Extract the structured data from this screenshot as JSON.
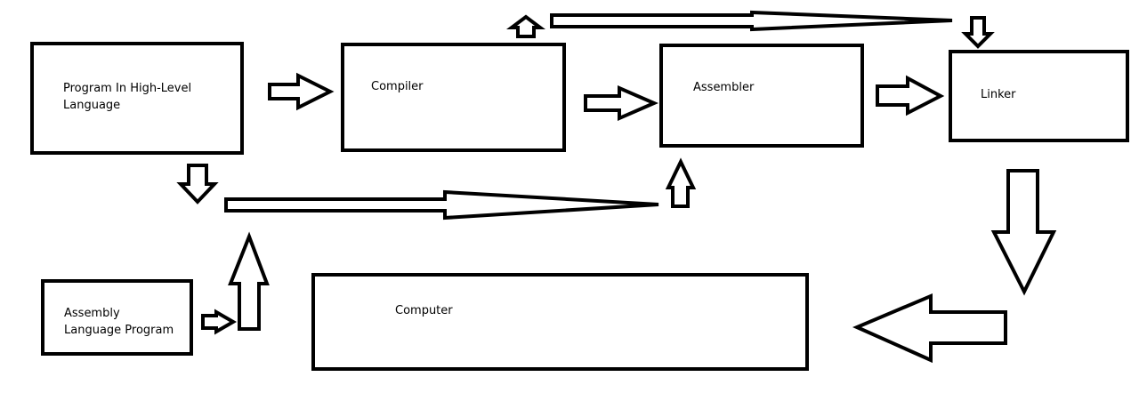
{
  "diagram": {
    "nodes": [
      {
        "id": "high-level-program",
        "label": "Program In High-Level\nLanguage"
      },
      {
        "id": "compiler",
        "label": "Compiler"
      },
      {
        "id": "assembler",
        "label": "Assembler"
      },
      {
        "id": "linker",
        "label": "Linker"
      },
      {
        "id": "assembly-program",
        "label": "Assembly\nLanguage Program"
      },
      {
        "id": "computer",
        "label": "Computer"
      }
    ],
    "edges": [
      {
        "from": "high-level-program",
        "to": "compiler"
      },
      {
        "from": "compiler",
        "to": "assembler"
      },
      {
        "from": "assembler",
        "to": "linker"
      },
      {
        "from": "compiler",
        "to": "linker"
      },
      {
        "from": "high-level-program",
        "to": "assembler"
      },
      {
        "from": "assembly-program",
        "to": "assembler"
      },
      {
        "from": "linker",
        "to": "computer"
      }
    ]
  }
}
